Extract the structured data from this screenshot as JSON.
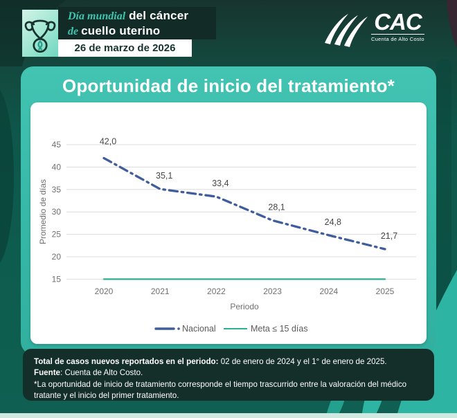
{
  "header": {
    "title_line1_script": "Día mundial",
    "title_line1_bold": " del cáncer",
    "title_line2_script": "de ",
    "title_line2_bold": "cuello uterino",
    "date": "26 de marzo de 2026"
  },
  "logo": {
    "acronym": "CAC",
    "subtitle": "Cuenta de Alto Costo"
  },
  "card": {
    "title": "Oportunidad de inicio del tratamiento*"
  },
  "chart_data": {
    "type": "line",
    "title": "Oportunidad de inicio del tratamiento*",
    "x": [
      "2020",
      "2021",
      "2022",
      "2023",
      "2024",
      "2025"
    ],
    "series": [
      {
        "name": "Nacional",
        "values": [
          42.0,
          35.1,
          33.4,
          28.1,
          24.8,
          21.7
        ],
        "color": "#3f5c9c",
        "style": "dashdot"
      },
      {
        "name": "Meta ≤ 15 días",
        "values": [
          15,
          15,
          15,
          15,
          15,
          15
        ],
        "color": "#2fae93",
        "style": "solid"
      }
    ],
    "point_labels": [
      "42,0",
      "35,1",
      "33,4",
      "28,1",
      "24,8",
      "21,7"
    ],
    "xlabel": "Periodo",
    "ylabel": "Promedio de días",
    "ylim": [
      15,
      45
    ],
    "yticks": [
      45,
      40,
      35,
      30,
      25,
      20,
      15
    ],
    "grid": true,
    "legend_position": "bottom"
  },
  "footer": {
    "line1_bold": "Total de casos nuevos reportados en el periodo:",
    "line1_rest": " 02 de enero de 2024 y el 1° de enero de 2025.",
    "line2_bold": "Fuente",
    "line2_rest": ": Cuenta de Alto Costo.",
    "line3": "*La oportunidad de inicio de tratamiento corresponde el tiempo trascurrido entre la valoración del médico tratante y el inicio del primer tratamiento."
  },
  "colors": {
    "background": "#0e5c4e",
    "card_teal": "#36b6a5",
    "dark_panel": "#142e29",
    "nacional_line": "#3f5c9c",
    "meta_line": "#2fae93",
    "grid_line": "#dcdcdc",
    "axis_text": "#6f6f6f"
  }
}
